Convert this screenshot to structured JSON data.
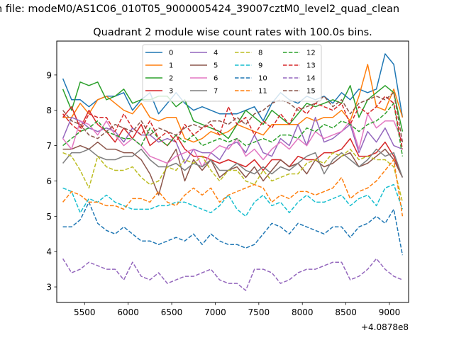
{
  "suptitle": "n file: modeM0/AS1C06_010T05_9000005424_39007cztM0_level2_quad_clean",
  "chart_data": {
    "type": "line",
    "title": "Quadrant 2 module wise count rates with 100.0s bins.",
    "xlabel": "",
    "ylabel": "",
    "x_offset_label": "+4.0878e8",
    "xlim": [
      5180,
      9220
    ],
    "ylim": [
      2.56,
      9.96
    ],
    "xticks": [
      5500,
      6000,
      6500,
      7000,
      7500,
      8000,
      8500,
      9000
    ],
    "yticks": [
      3,
      4,
      5,
      6,
      7,
      8,
      9
    ],
    "grid": false,
    "legend_position": "top-center",
    "x": [
      5250,
      5350,
      5450,
      5550,
      5650,
      5750,
      5850,
      5950,
      6050,
      6150,
      6250,
      6350,
      6450,
      6550,
      6650,
      6750,
      6850,
      6950,
      7050,
      7150,
      7250,
      7350,
      7450,
      7550,
      7650,
      7750,
      7850,
      7950,
      8050,
      8150,
      8250,
      8350,
      8450,
      8550,
      8650,
      8750,
      8850,
      8950,
      9050,
      9150
    ],
    "series": [
      {
        "name": "0",
        "color": "#1f77b4",
        "dash": "solid",
        "values": [
          8.9,
          8.3,
          8.3,
          8.1,
          8.3,
          8.4,
          8.4,
          8.5,
          8.0,
          8.3,
          8.5,
          7.9,
          8.2,
          8.5,
          8.2,
          8.0,
          8.1,
          8.0,
          7.9,
          7.9,
          7.9,
          8.0,
          8.1,
          7.7,
          8.2,
          8.5,
          8.3,
          8.2,
          8.4,
          8.3,
          8.4,
          8.2,
          8.5,
          8.3,
          8.6,
          8.5,
          8.6,
          9.6,
          9.3,
          7.8
        ]
      },
      {
        "name": "1",
        "color": "#ff7f0e",
        "dash": "solid",
        "values": [
          7.8,
          7.8,
          8.2,
          7.9,
          8.3,
          8.4,
          8.2,
          8.0,
          7.9,
          8.2,
          7.8,
          7.7,
          7.8,
          7.8,
          7.2,
          7.1,
          7.2,
          7.4,
          7.3,
          7.4,
          7.6,
          7.5,
          7.4,
          7.3,
          7.6,
          7.6,
          7.6,
          7.6,
          7.8,
          7.7,
          7.8,
          7.8,
          8.0,
          7.7,
          8.4,
          9.3,
          8.1,
          8.0,
          8.6,
          7.8
        ]
      },
      {
        "name": "2",
        "color": "#2ca02c",
        "dash": "solid",
        "values": [
          8.6,
          8.0,
          8.8,
          8.7,
          8.8,
          8.3,
          8.4,
          8.6,
          8.2,
          8.3,
          8.3,
          8.4,
          8.4,
          8.1,
          8.3,
          7.7,
          7.6,
          7.5,
          7.4,
          7.2,
          7.6,
          8.0,
          7.8,
          7.6,
          8.0,
          7.8,
          7.6,
          7.9,
          8.2,
          8.1,
          8.2,
          8.3,
          8.2,
          8.7,
          7.8,
          8.3,
          8.5,
          8.7,
          8.5,
          7.4
        ]
      },
      {
        "name": "3",
        "color": "#d62728",
        "dash": "solid",
        "values": [
          7.8,
          8.1,
          7.5,
          8.0,
          7.6,
          7.4,
          7.1,
          7.5,
          7.2,
          7.6,
          7.0,
          7.2,
          7.0,
          7.3,
          6.9,
          6.7,
          6.7,
          6.6,
          6.5,
          6.6,
          6.5,
          6.4,
          6.6,
          6.3,
          6.6,
          6.6,
          6.4,
          6.7,
          6.6,
          6.6,
          6.8,
          6.8,
          6.9,
          7.2,
          6.7,
          6.7,
          6.8,
          7.1,
          6.7,
          6.1
        ]
      },
      {
        "name": "4",
        "color": "#9467bd",
        "dash": "solid",
        "values": [
          7.2,
          7.8,
          7.7,
          7.5,
          7.4,
          7.5,
          7.4,
          7.1,
          7.5,
          7.3,
          7.3,
          7.1,
          7.2,
          7.1,
          6.5,
          6.9,
          6.8,
          6.8,
          6.6,
          7.0,
          7.1,
          6.8,
          7.3,
          6.8,
          6.7,
          7.2,
          7.0,
          7.6,
          7.0,
          7.8,
          7.1,
          7.2,
          7.4,
          7.6,
          6.8,
          7.4,
          7.1,
          7.5,
          7.0,
          6.9
        ]
      },
      {
        "name": "5",
        "color": "#8c564b",
        "dash": "solid",
        "values": [
          6.9,
          6.9,
          7.0,
          6.9,
          7.1,
          6.9,
          6.9,
          6.8,
          6.8,
          6.6,
          6.2,
          5.6,
          6.5,
          6.9,
          6.0,
          6.6,
          6.3,
          6.6,
          6.1,
          6.3,
          6.4,
          6.1,
          6.4,
          6.0,
          6.3,
          6.6,
          6.4,
          6.5,
          6.2,
          6.6,
          6.4,
          6.5,
          6.7,
          6.8,
          6.4,
          6.5,
          6.7,
          6.9,
          6.6,
          6.1
        ]
      },
      {
        "name": "6",
        "color": "#e377c2",
        "dash": "solid",
        "values": [
          7.2,
          6.9,
          7.7,
          7.6,
          7.3,
          7.7,
          7.3,
          7.0,
          7.2,
          7.0,
          6.7,
          6.6,
          6.5,
          6.7,
          6.8,
          6.9,
          6.4,
          6.8,
          7.0,
          6.9,
          7.2,
          6.7,
          6.9,
          6.6,
          6.9,
          7.1,
          6.9,
          7.2,
          7.0,
          7.4,
          7.2,
          7.3,
          7.4,
          7.7,
          6.9,
          7.9,
          7.5,
          7.7,
          7.7,
          7.1
        ]
      },
      {
        "name": "7",
        "color": "#7f7f7f",
        "dash": "solid",
        "values": [
          6.5,
          6.8,
          6.8,
          6.9,
          6.7,
          6.6,
          6.6,
          6.7,
          6.7,
          6.9,
          6.6,
          6.4,
          6.4,
          6.5,
          6.3,
          6.5,
          6.4,
          6.6,
          6.3,
          6.3,
          6.5,
          6.3,
          6.2,
          6.4,
          6.2,
          6.4,
          6.3,
          6.5,
          6.7,
          6.8,
          6.2,
          6.6,
          6.8,
          6.6,
          6.4,
          6.6,
          6.9,
          6.7,
          6.8,
          6.1
        ]
      },
      {
        "name": "8",
        "color": "#bcbd22",
        "dash": "dashed",
        "values": [
          6.8,
          6.7,
          6.3,
          5.8,
          6.7,
          6.4,
          6.3,
          6.3,
          6.4,
          6.1,
          5.9,
          6.0,
          6.4,
          6.3,
          6.6,
          6.5,
          6.7,
          6.3,
          6.0,
          6.3,
          6.3,
          6.0,
          5.9,
          6.3,
          6.0,
          6.1,
          6.2,
          6.2,
          6.5,
          6.6,
          6.5,
          6.8,
          6.7,
          6.9,
          6.6,
          6.7,
          6.6,
          6.6,
          6.4,
          5.4
        ]
      },
      {
        "name": "9",
        "color": "#17becf",
        "dash": "dashed",
        "values": [
          5.8,
          5.7,
          5.1,
          5.5,
          5.4,
          5.6,
          5.4,
          5.3,
          5.2,
          5.2,
          5.2,
          5.3,
          5.3,
          5.4,
          5.4,
          5.3,
          5.2,
          5.1,
          5.3,
          5.6,
          5.2,
          5.0,
          5.4,
          5.6,
          5.3,
          5.4,
          5.1,
          5.4,
          5.6,
          5.4,
          5.4,
          5.5,
          5.6,
          5.3,
          5.5,
          5.6,
          5.3,
          5.8,
          5.9,
          5.2
        ]
      },
      {
        "name": "10",
        "color": "#1f77b4",
        "dash": "dashed",
        "values": [
          4.7,
          4.7,
          4.9,
          5.4,
          4.8,
          4.6,
          4.5,
          4.7,
          4.5,
          4.3,
          4.3,
          4.2,
          4.3,
          4.4,
          4.3,
          4.5,
          4.2,
          4.5,
          4.3,
          4.2,
          4.2,
          4.1,
          4.2,
          4.5,
          4.8,
          4.7,
          4.5,
          4.8,
          4.7,
          4.6,
          4.5,
          4.7,
          4.7,
          4.4,
          4.7,
          4.8,
          5.0,
          4.8,
          5.2,
          3.9
        ]
      },
      {
        "name": "11",
        "color": "#ff7f0e",
        "dash": "dashed",
        "values": [
          5.4,
          5.7,
          5.6,
          5.4,
          5.4,
          5.3,
          5.3,
          5.2,
          5.5,
          5.5,
          5.4,
          5.7,
          5.4,
          5.3,
          5.6,
          5.8,
          5.6,
          5.8,
          5.4,
          5.6,
          5.7,
          5.8,
          5.9,
          5.8,
          5.4,
          5.6,
          5.5,
          5.7,
          5.7,
          5.6,
          5.7,
          5.8,
          6.1,
          5.5,
          5.7,
          5.8,
          6.0,
          6.3,
          6.6,
          5.0
        ]
      },
      {
        "name": "12",
        "color": "#2ca02c",
        "dash": "dashed",
        "values": [
          7.0,
          7.2,
          7.4,
          7.5,
          7.7,
          7.4,
          7.3,
          7.2,
          7.2,
          7.0,
          7.5,
          7.2,
          7.0,
          7.3,
          7.1,
          7.3,
          7.0,
          7.1,
          7.2,
          7.1,
          7.2,
          7.0,
          7.1,
          7.2,
          7.1,
          7.3,
          7.3,
          7.2,
          7.5,
          7.4,
          7.6,
          7.5,
          7.7,
          7.6,
          7.4,
          7.6,
          7.7,
          7.9,
          8.2,
          6.7
        ]
      },
      {
        "name": "13",
        "color": "#d62728",
        "dash": "dashed",
        "values": [
          7.9,
          7.6,
          7.4,
          7.9,
          7.8,
          7.8,
          7.4,
          7.9,
          7.5,
          7.3,
          7.7,
          7.2,
          7.4,
          7.1,
          7.6,
          7.3,
          7.5,
          7.6,
          7.3,
          8.1,
          7.6,
          7.8,
          7.3,
          7.7,
          7.5,
          7.9,
          7.6,
          8.1,
          7.9,
          8.2,
          8.1,
          8.0,
          8.2,
          7.6,
          8.1,
          7.9,
          8.1,
          8.4,
          8.2,
          6.9
        ]
      },
      {
        "name": "14",
        "color": "#9467bd",
        "dash": "dashed",
        "values": [
          3.8,
          3.4,
          3.5,
          3.7,
          3.6,
          3.5,
          3.5,
          3.2,
          3.7,
          3.3,
          3.2,
          3.4,
          3.1,
          3.2,
          3.3,
          3.3,
          3.4,
          3.5,
          3.2,
          3.1,
          3.1,
          2.9,
          3.5,
          3.5,
          3.4,
          3.1,
          3.2,
          3.4,
          3.5,
          3.5,
          3.6,
          3.7,
          3.7,
          3.2,
          3.3,
          3.5,
          3.8,
          3.5,
          3.3,
          3.2
        ]
      },
      {
        "name": "15",
        "color": "#8c564b",
        "dash": "dashed",
        "values": [
          8.0,
          7.7,
          7.6,
          7.3,
          7.2,
          7.4,
          7.6,
          7.5,
          7.4,
          7.7,
          7.3,
          7.5,
          7.4,
          7.3,
          7.5,
          7.6,
          7.5,
          7.7,
          7.7,
          7.6,
          7.8,
          7.6,
          7.9,
          8.0,
          8.2,
          8.3,
          8.2,
          8.0,
          8.1,
          8.2,
          8.4,
          8.1,
          8.3,
          7.9,
          8.2,
          8.3,
          8.4,
          8.3,
          8.5,
          7.1
        ]
      }
    ]
  },
  "colors": {
    "axes": "#000000",
    "background": "#ffffff"
  }
}
